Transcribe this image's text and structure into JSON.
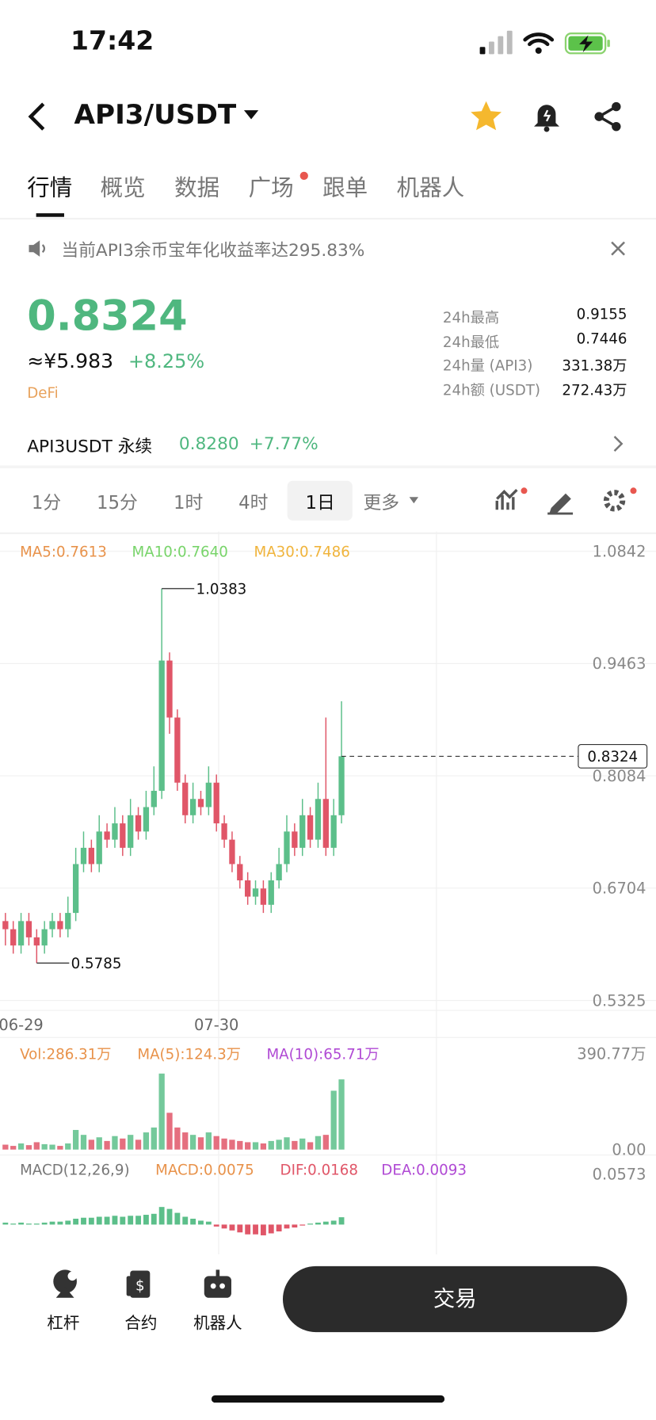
{
  "status_bar": {
    "time": "17:42"
  },
  "header": {
    "pair": "API3/USDT"
  },
  "tabs": [
    "行情",
    "概览",
    "数据",
    "广场",
    "跟单",
    "机器人"
  ],
  "notice": "当前API3余币宝年化收益率达295.83%",
  "price": {
    "last": "0.8324",
    "cny": "≈¥5.983",
    "change": "+8.25%",
    "tag": "DeFi"
  },
  "stats": [
    {
      "label": "24h最高",
      "value": "0.9155"
    },
    {
      "label": "24h最低",
      "value": "0.7446"
    },
    {
      "label": "24h量 (API3)",
      "value": "331.38万"
    },
    {
      "label": "24h额 (USDT)",
      "value": "272.43万"
    }
  ],
  "perpetual": {
    "name": "API3USDT 永续",
    "price": "0.8280",
    "change": "+7.77%"
  },
  "intervals": [
    "1分",
    "15分",
    "1时",
    "4时",
    "1日",
    "更多"
  ],
  "chart_data": {
    "type": "candlestick",
    "ma_labels": [
      "MA5:0.7613",
      "MA10:0.7640",
      "MA30:0.7486"
    ],
    "ma_colors": [
      "#e8924a",
      "#78d46a",
      "#f0b43c"
    ],
    "up_color": "#5cbf8a",
    "down_color": "#e05668",
    "categories": [
      null,
      null,
      "06-29",
      null,
      null,
      null,
      null,
      null,
      null,
      null,
      null,
      null,
      null,
      null,
      null,
      null,
      null,
      null,
      null,
      null,
      null,
      null,
      null,
      null,
      null,
      null,
      null,
      "07-30",
      null,
      null,
      null,
      null,
      null,
      null,
      null,
      null,
      null,
      null,
      null,
      null,
      null,
      null,
      null,
      null
    ],
    "open": [
      0.63,
      0.62,
      0.6,
      0.63,
      0.61,
      0.6,
      0.62,
      0.63,
      0.62,
      0.64,
      0.7,
      0.72,
      0.7,
      0.74,
      0.73,
      0.75,
      0.72,
      0.76,
      0.74,
      0.77,
      0.79,
      0.95,
      0.88,
      0.8,
      0.76,
      0.78,
      0.77,
      0.8,
      0.75,
      0.73,
      0.7,
      0.68,
      0.66,
      0.67,
      0.65,
      0.68,
      0.7,
      0.74,
      0.72,
      0.76,
      0.73,
      0.78,
      0.72,
      0.76
    ],
    "high": [
      0.64,
      0.63,
      0.64,
      0.64,
      0.62,
      0.63,
      0.64,
      0.64,
      0.66,
      0.72,
      0.74,
      0.73,
      0.76,
      0.75,
      0.77,
      0.76,
      0.78,
      0.77,
      0.79,
      0.82,
      1.0383,
      0.96,
      0.89,
      0.81,
      0.8,
      0.79,
      0.82,
      0.81,
      0.76,
      0.74,
      0.71,
      0.69,
      0.68,
      0.68,
      0.69,
      0.72,
      0.76,
      0.75,
      0.78,
      0.77,
      0.8,
      0.88,
      0.78,
      0.9
    ],
    "low": [
      0.6,
      0.59,
      0.59,
      0.6,
      0.5785,
      0.59,
      0.61,
      0.61,
      0.61,
      0.63,
      0.69,
      0.69,
      0.69,
      0.72,
      0.72,
      0.71,
      0.71,
      0.73,
      0.73,
      0.76,
      0.78,
      0.86,
      0.79,
      0.75,
      0.75,
      0.76,
      0.76,
      0.74,
      0.72,
      0.69,
      0.67,
      0.65,
      0.65,
      0.64,
      0.64,
      0.67,
      0.69,
      0.71,
      0.71,
      0.72,
      0.72,
      0.71,
      0.71,
      0.75
    ],
    "close": [
      0.62,
      0.6,
      0.63,
      0.61,
      0.6,
      0.62,
      0.63,
      0.62,
      0.64,
      0.7,
      0.72,
      0.7,
      0.74,
      0.73,
      0.75,
      0.72,
      0.76,
      0.74,
      0.77,
      0.79,
      0.95,
      0.88,
      0.8,
      0.76,
      0.78,
      0.77,
      0.8,
      0.75,
      0.73,
      0.7,
      0.68,
      0.66,
      0.67,
      0.65,
      0.68,
      0.7,
      0.74,
      0.72,
      0.76,
      0.73,
      0.78,
      0.72,
      0.76,
      0.8324
    ],
    "ylim": [
      0.5325,
      1.0842
    ],
    "yticks": [
      1.0842,
      0.9463,
      0.8084,
      0.6704,
      0.5325
    ],
    "grid": true,
    "volume": {
      "labels": [
        "Vol:286.31万",
        "MA(5):124.3万",
        "MA(10):65.71万"
      ],
      "label_colors": [
        "#e8924a",
        "#e8924a",
        "#b04ad4"
      ],
      "values": [
        20,
        15,
        25,
        18,
        30,
        22,
        20,
        15,
        25,
        80,
        60,
        40,
        50,
        35,
        55,
        45,
        60,
        40,
        70,
        90,
        310,
        150,
        90,
        70,
        60,
        50,
        70,
        55,
        45,
        40,
        35,
        30,
        30,
        25,
        35,
        40,
        50,
        35,
        45,
        30,
        55,
        60,
        240,
        286.31
      ],
      "ylim": [
        0,
        390.77
      ],
      "yticks": [
        {
          "value": 390.77,
          "label": "390.77万"
        },
        {
          "value": 0,
          "label": "0.00"
        }
      ]
    },
    "macd": {
      "labels": [
        "MACD(12,26,9)",
        "MACD:0.0075",
        "DIF:0.0168",
        "DEA:0.0093"
      ],
      "label_colors": [
        "#777777",
        "#e8924a",
        "#e05668",
        "#b04ad4"
      ],
      "values": [
        0.002,
        0.001,
        0.002,
        0.001,
        0.001,
        0.002,
        0.003,
        0.003,
        0.004,
        0.006,
        0.007,
        0.007,
        0.008,
        0.008,
        0.009,
        0.008,
        0.009,
        0.009,
        0.01,
        0.011,
        0.018,
        0.016,
        0.012,
        0.008,
        0.006,
        0.004,
        0.003,
        -0.002,
        -0.004,
        -0.006,
        -0.008,
        -0.01,
        -0.01,
        -0.011,
        -0.009,
        -0.007,
        -0.004,
        -0.003,
        -0.001,
        0.001,
        0.002,
        0.003,
        0.004,
        0.0075
      ],
      "ylim": [
        -0.0305,
        0.0573
      ],
      "yticks": [
        0.0573
      ]
    }
  },
  "bottom": {
    "items": [
      "杠杆",
      "合约",
      "机器人"
    ],
    "trade": "交易"
  }
}
